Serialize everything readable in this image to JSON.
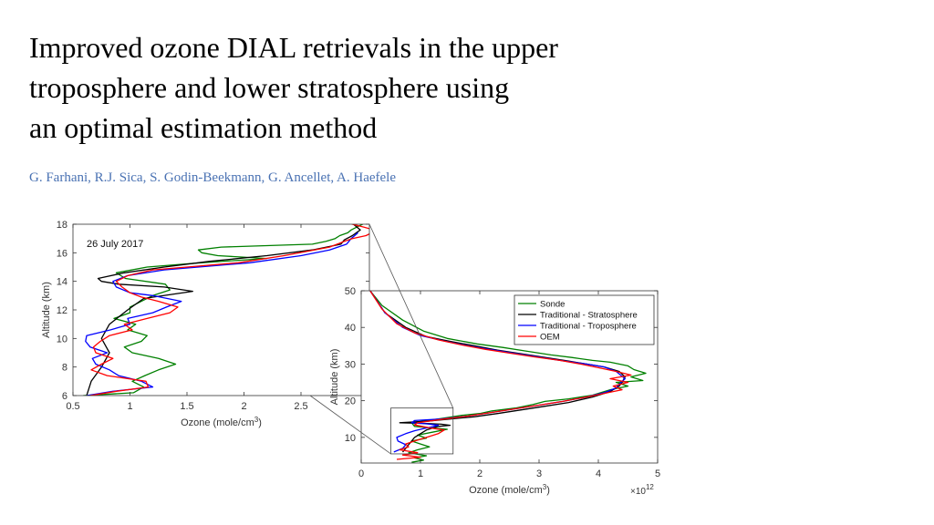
{
  "slide": {
    "title_lines": [
      "Improved ozone DIAL retrievals in the upper",
      "troposphere and lower stratosphere using",
      "an optimal estimation method"
    ],
    "authors": "G. Farhani, R.J. Sica, S. Godin-Beekmann, G. Ancellet, A. Haefele"
  },
  "colors": {
    "sonde": "#008000",
    "trad_strat": "#000000",
    "trad_trop": "#0000ff",
    "oem": "#ff0000",
    "authors": "#4a72b3"
  },
  "chart_data": [
    {
      "id": "zoom",
      "type": "line",
      "title": "",
      "annotation": "26 July 2017",
      "xlabel": "Ozone (mole/cm",
      "xlabel_sup": "3",
      "xlabel_close": ")",
      "ylabel": "Altitude (km)",
      "xlim": [
        0.5,
        3.1
      ],
      "ylim": [
        6,
        18
      ],
      "xticks": [
        0.5,
        1,
        1.5,
        2,
        2.5
      ],
      "xtick_labels": [
        "0.5",
        "1",
        "1.5",
        "2",
        "2.5"
      ],
      "yticks": [
        6,
        8,
        10,
        12,
        14,
        16,
        18
      ],
      "ytick_labels": [
        "6",
        "8",
        "10",
        "12",
        "14",
        "16",
        "18"
      ],
      "grid": false,
      "series": [
        {
          "key": "sonde",
          "x": [
            0.59,
            1.03,
            1.12,
            1.02,
            1.13,
            1.25,
            1.4,
            1.25,
            1.02,
            0.95,
            1.1,
            1.15,
            0.98,
            1.05,
            0.86,
            1.0,
            1.0,
            1.1,
            1.2,
            1.35,
            1.31,
            0.96,
            0.88,
            1.15,
            1.62,
            2.2,
            1.77,
            1.63,
            1.6,
            1.8,
            2.6,
            2.72,
            2.8,
            2.84,
            2.91,
            2.94,
            2.99,
            3.04,
            3.05,
            3.09,
            3.1,
            3.05
          ],
          "y": [
            6.0,
            6.2,
            6.6,
            7.0,
            7.4,
            7.8,
            8.2,
            8.6,
            9.0,
            9.4,
            9.8,
            10.2,
            10.6,
            11.0,
            11.4,
            11.8,
            12.2,
            12.6,
            13.0,
            13.4,
            13.8,
            14.2,
            14.6,
            15.0,
            15.3,
            15.6,
            15.8,
            16.0,
            16.2,
            16.4,
            16.6,
            16.8,
            17.0,
            17.2,
            17.4,
            17.6,
            17.8,
            18.0,
            18.2,
            18.3,
            18.3,
            18.2
          ]
        },
        {
          "key": "trad_strat",
          "x": [
            0.62,
            0.66,
            0.75,
            0.82,
            0.75,
            0.82,
            0.98,
            1.12,
            1.55,
            1.3,
            0.9,
            0.75,
            0.72,
            0.95,
            1.3,
            1.7,
            2.2,
            2.6,
            2.85,
            2.88,
            2.95,
            3.02,
            2.96
          ],
          "y": [
            6.0,
            7.0,
            8.0,
            9.0,
            10.0,
            11.0,
            12.0,
            12.8,
            13.3,
            13.6,
            13.8,
            14.0,
            14.2,
            14.6,
            15.0,
            15.4,
            15.8,
            16.2,
            16.6,
            16.9,
            17.2,
            17.6,
            18.0
          ]
        },
        {
          "key": "trad_trop",
          "x": [
            0.62,
            0.85,
            1.2,
            1.1,
            0.9,
            0.82,
            0.7,
            0.67,
            0.8,
            0.65,
            0.61,
            0.62,
            0.83,
            1.0,
            0.98,
            1.2,
            1.32,
            1.45,
            1.2,
            1.0,
            0.88,
            0.85,
            0.98,
            1.3,
            1.6,
            2.05,
            2.5,
            2.75,
            2.9,
            2.94,
            3.0
          ],
          "y": [
            6.0,
            6.3,
            6.6,
            7.0,
            7.4,
            7.8,
            8.2,
            8.6,
            9.0,
            9.4,
            9.8,
            10.2,
            10.6,
            11.0,
            11.4,
            11.8,
            12.2,
            12.6,
            13.0,
            13.2,
            13.6,
            14.0,
            14.4,
            14.8,
            15.0,
            15.3,
            15.8,
            16.2,
            16.6,
            17.0,
            17.4
          ]
        },
        {
          "key": "oem",
          "x": [
            0.65,
            0.88,
            1.16,
            1.14,
            0.8,
            0.66,
            0.75,
            0.85,
            0.7,
            0.68,
            0.74,
            0.82,
            1.02,
            0.95,
            1.15,
            1.35,
            1.42,
            1.25,
            1.1,
            1.0,
            0.93,
            0.88,
            0.98,
            1.2,
            1.5,
            1.95,
            2.35,
            2.75,
            2.88,
            2.95,
            3.07,
            3.12,
            3.14,
            3.05,
            2.95,
            2.9
          ],
          "y": [
            6.0,
            6.3,
            6.6,
            7.0,
            7.4,
            7.8,
            8.2,
            8.6,
            9.0,
            9.4,
            9.8,
            10.2,
            10.6,
            11.0,
            11.4,
            11.8,
            12.2,
            12.6,
            12.9,
            13.2,
            13.6,
            14.0,
            14.4,
            14.8,
            15.0,
            15.3,
            15.8,
            16.4,
            16.8,
            17.0,
            17.2,
            17.4,
            17.6,
            17.8,
            18.0,
            18.2
          ]
        }
      ]
    },
    {
      "id": "full",
      "type": "line",
      "title": "",
      "xlabel": "Ozone (mole/cm",
      "xlabel_sup": "3",
      "xlabel_close": ")",
      "x_multiplier": "×10",
      "x_multiplier_exp": "12",
      "ylabel": "Altitude (km)",
      "xlim": [
        0,
        5
      ],
      "ylim": [
        3,
        50
      ],
      "xticks": [
        0,
        1,
        2,
        3,
        4,
        5
      ],
      "xtick_labels": [
        "0",
        "1",
        "2",
        "3",
        "4",
        "5"
      ],
      "yticks": [
        10,
        20,
        30,
        40,
        50
      ],
      "ytick_labels": [
        "10",
        "20",
        "30",
        "40",
        "50"
      ],
      "grid": false,
      "legend_position": "top-right",
      "series": [
        {
          "key": "sonde",
          "name": "Sonde",
          "x": [
            0.85,
            1.05,
            0.9,
            1.1,
            0.8,
            0.95,
            1.15,
            1.0,
            0.85,
            1.1,
            0.95,
            1.2,
            1.45,
            0.9,
            0.85,
            1.3,
            1.7,
            2.0,
            2.2,
            2.6,
            2.9,
            3.1,
            3.5,
            3.9,
            4.2,
            4.5,
            4.3,
            4.75,
            4.55,
            4.8,
            4.6,
            4.5,
            4.2,
            3.9,
            3.55,
            3.2,
            2.8,
            2.4,
            1.95,
            1.45,
            1.05,
            0.7,
            0.35,
            0.15
          ],
          "y": [
            3.2,
            3.8,
            4.4,
            5.0,
            5.8,
            6.6,
            7.4,
            8.2,
            9.0,
            9.8,
            10.6,
            11.4,
            12.2,
            13.0,
            14.0,
            15.0,
            16.0,
            16.5,
            17.2,
            18.0,
            19.0,
            19.8,
            20.5,
            21.5,
            23.0,
            24.0,
            25.0,
            25.5,
            26.5,
            27.5,
            28.5,
            29.5,
            30.5,
            31.0,
            31.8,
            32.5,
            33.5,
            34.5,
            35.5,
            37.0,
            39.0,
            42.0,
            46.0,
            50.0
          ]
        },
        {
          "key": "trad_strat",
          "name": "Traditional - Stratosphere",
          "x": [
            0.7,
            0.75,
            0.8,
            0.85,
            0.9,
            1.0,
            1.1,
            1.2,
            1.3,
            1.5,
            1.35,
            1.1,
            0.65,
            1.1,
            1.5,
            1.9,
            2.3,
            2.7,
            3.1,
            3.5,
            3.9,
            4.2,
            4.35,
            4.4,
            4.45,
            4.35,
            4.1,
            3.8,
            3.5,
            3.1,
            2.7,
            2.3,
            1.9,
            1.5,
            1.1,
            0.75,
            0.4,
            0.15
          ],
          "y": [
            6.0,
            7.0,
            8.0,
            9.0,
            10.0,
            11.0,
            12.0,
            12.5,
            13.0,
            13.3,
            13.6,
            13.8,
            14.0,
            14.4,
            15.0,
            15.6,
            16.5,
            17.5,
            18.5,
            19.5,
            21.0,
            22.5,
            24.0,
            25.0,
            26.5,
            28.0,
            29.2,
            30.0,
            30.8,
            31.8,
            32.8,
            33.8,
            35.0,
            36.2,
            37.5,
            40.0,
            44.0,
            50.0
          ]
        },
        {
          "key": "trad_trop",
          "name": "Traditional - Troposphere",
          "x": [
            0.55,
            0.7,
            0.75,
            0.62,
            0.6,
            0.75,
            0.9,
            1.05,
            1.2,
            1.3,
            1.1,
            0.85,
            0.9,
            1.35,
            1.8,
            2.2,
            2.6,
            3.0,
            3.4,
            3.8,
            4.1,
            4.3,
            4.35,
            4.45,
            4.3,
            4.1,
            3.8,
            3.4,
            3.0,
            2.6,
            2.2,
            1.8,
            1.4,
            1.0,
            0.7,
            0.4,
            0.15
          ],
          "y": [
            6.0,
            7.0,
            8.0,
            9.0,
            10.0,
            11.0,
            11.8,
            12.4,
            12.9,
            13.3,
            13.7,
            14.0,
            14.6,
            15.0,
            15.8,
            16.8,
            17.8,
            18.8,
            19.8,
            21.0,
            22.2,
            23.5,
            24.5,
            26.0,
            28.0,
            29.2,
            30.0,
            30.9,
            31.9,
            32.9,
            33.9,
            35.0,
            36.3,
            37.8,
            40.0,
            44.0,
            50.0
          ]
        },
        {
          "key": "oem",
          "name": "OEM",
          "x": [
            0.6,
            1.0,
            0.7,
            0.95,
            0.65,
            0.8,
            0.75,
            0.9,
            1.1,
            1.3,
            1.4,
            1.15,
            0.9,
            0.95,
            1.4,
            1.8,
            2.2,
            2.6,
            3.0,
            3.4,
            3.8,
            4.1,
            4.4,
            4.25,
            4.5,
            4.2,
            4.55,
            4.3,
            4.0,
            3.7,
            3.35,
            2.9,
            2.5,
            2.1,
            1.7,
            1.3,
            0.9,
            0.6,
            0.35,
            0.15
          ],
          "y": [
            4.0,
            4.6,
            5.2,
            5.8,
            6.6,
            7.4,
            8.2,
            9.0,
            10.0,
            11.0,
            12.0,
            12.6,
            13.4,
            14.0,
            15.0,
            15.8,
            16.8,
            17.8,
            18.8,
            19.8,
            21.0,
            22.0,
            23.0,
            24.0,
            25.0,
            26.0,
            27.0,
            28.0,
            29.0,
            30.0,
            31.0,
            32.0,
            33.0,
            34.0,
            35.2,
            36.6,
            38.5,
            41.0,
            45.0,
            50.0
          ]
        }
      ]
    }
  ]
}
